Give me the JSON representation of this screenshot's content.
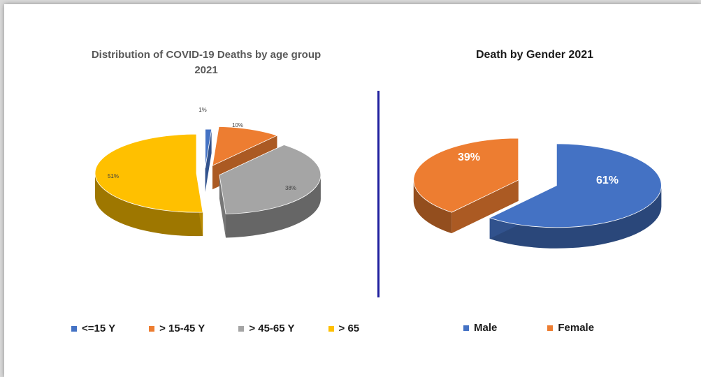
{
  "chart_data": [
    {
      "type": "pie",
      "style": "3d-exploded",
      "title": "Distribution of COVID-19 Deaths by age group",
      "subtitle": "2021",
      "categories": [
        "<=15 Y",
        "> 15-45 Y",
        "> 45-65 Y",
        "> 65"
      ],
      "values": [
        1,
        10,
        38,
        51
      ],
      "labels": [
        "1%",
        "10%",
        "38%",
        "51%"
      ],
      "colors": [
        "#4472c4",
        "#ed7d31",
        "#a5a5a5",
        "#ffc000"
      ],
      "legend": "bottom"
    },
    {
      "type": "pie",
      "style": "3d-exploded",
      "title": "Death by Gender 2021",
      "categories": [
        "Male",
        "Female"
      ],
      "values": [
        61,
        39
      ],
      "labels": [
        "61%",
        "39%"
      ],
      "colors": [
        "#4472c4",
        "#ed7d31"
      ],
      "legend": "bottom"
    }
  ]
}
